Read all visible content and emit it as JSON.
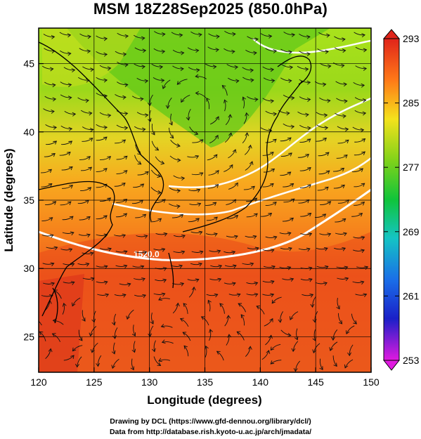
{
  "title": "MSM 18Z28Sep2025 (850.0hPa)",
  "map": {
    "xlabel": "Longitude (degrees)",
    "ylabel": "Latitude  (degrees)",
    "lon_range": [
      120,
      150
    ],
    "lat_range": [
      22.4,
      47.6
    ],
    "lon_ticks": [
      "120",
      "125",
      "130",
      "135",
      "140",
      "145",
      "150"
    ],
    "lat_ticks": [
      "25",
      "30",
      "35",
      "40",
      "45"
    ],
    "contour_label": "1520.0",
    "colors": {
      "warm": "#e23a1a",
      "mid": "#ff9a1a",
      "cool": "#a8d81a",
      "green": "#5cc81a"
    }
  },
  "colorbar": {
    "labels": [
      "293",
      "285",
      "277",
      "269",
      "261",
      "253"
    ],
    "min": 253,
    "max": 293
  },
  "credits": {
    "line1": "Drawing by DCL (https://www.gfd-dennou.org/library/dcl/)",
    "line2": "Data from http://database.rish.kyoto-u.ac.jp/arch/jmadata/"
  }
}
